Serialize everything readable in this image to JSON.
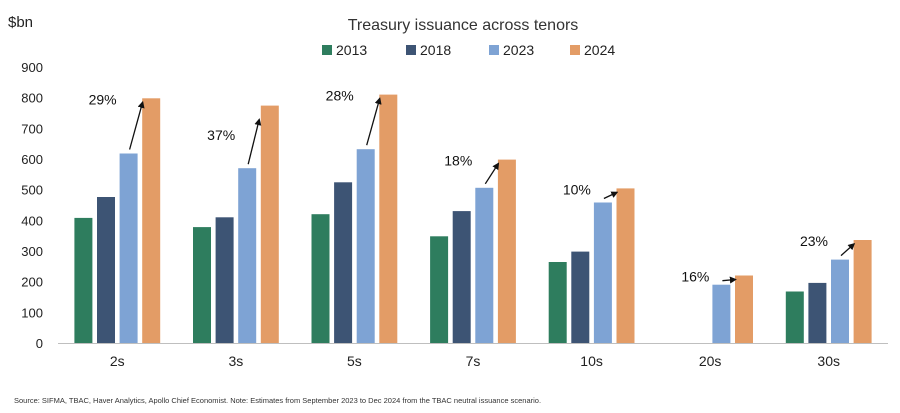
{
  "chart_data": {
    "type": "bar",
    "title": "Treasury issuance across tenors",
    "ylabel": "$bn",
    "xlabel": "",
    "ylim": [
      0,
      900
    ],
    "yticks": [
      0,
      100,
      200,
      300,
      400,
      500,
      600,
      700,
      800,
      900
    ],
    "grid": false,
    "legend_position": "top",
    "categories": [
      "2s",
      "3s",
      "5s",
      "7s",
      "10s",
      "20s",
      "30s"
    ],
    "series": [
      {
        "name": "2013",
        "color": "#2e7d5e",
        "values": [
          408,
          378,
          420,
          348,
          264,
          null,
          168
        ]
      },
      {
        "name": "2018",
        "color": "#3d5474",
        "values": [
          476,
          410,
          524,
          430,
          298,
          null,
          196
        ]
      },
      {
        "name": "2023",
        "color": "#7ea3d4",
        "values": [
          618,
          570,
          632,
          506,
          458,
          190,
          272
        ]
      },
      {
        "name": "2024",
        "color": "#e39c66",
        "values": [
          798,
          774,
          810,
          598,
          504,
          220,
          336
        ]
      }
    ],
    "annotations": [
      {
        "category": "2s",
        "text": "29%"
      },
      {
        "category": "3s",
        "text": "37%"
      },
      {
        "category": "5s",
        "text": "28%"
      },
      {
        "category": "7s",
        "text": "18%"
      },
      {
        "category": "10s",
        "text": "10%"
      },
      {
        "category": "20s",
        "text": "16%"
      },
      {
        "category": "30s",
        "text": "23%"
      }
    ]
  },
  "footer": {
    "source": "Source: SIFMA, TBAC, Haver Analytics, Apollo Chief Economist. Note: Estimates from September 2023 to Dec 2024 from the TBAC neutral issuance scenario."
  }
}
